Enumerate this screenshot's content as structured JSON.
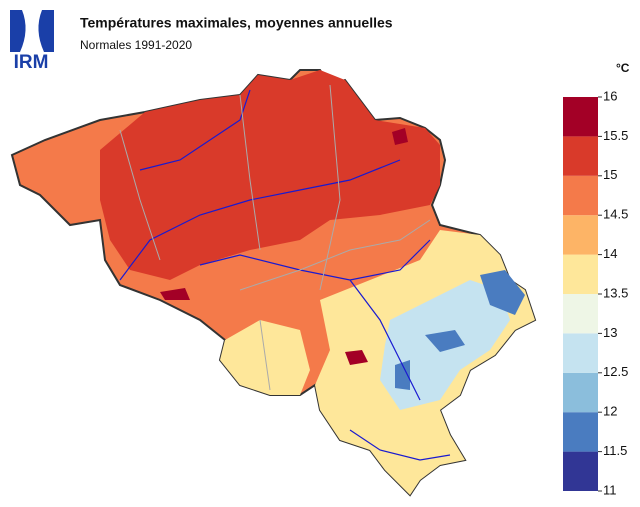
{
  "header": {
    "logo": "IRM",
    "title": "Températures maximales, moyennes annuelles",
    "subtitle": "Normales 1991-2020"
  },
  "legend": {
    "unit": "°C",
    "ticks": [
      11,
      11.5,
      12,
      12.5,
      13,
      13.5,
      14,
      14.5,
      15,
      15.5,
      16
    ],
    "colors": [
      "#313695",
      "#4a7cc0",
      "#8bbedc",
      "#c5e3f0",
      "#eef6e6",
      "#fee79a",
      "#fdb466",
      "#f47a4a",
      "#d93a2a",
      "#a30026"
    ]
  }
}
